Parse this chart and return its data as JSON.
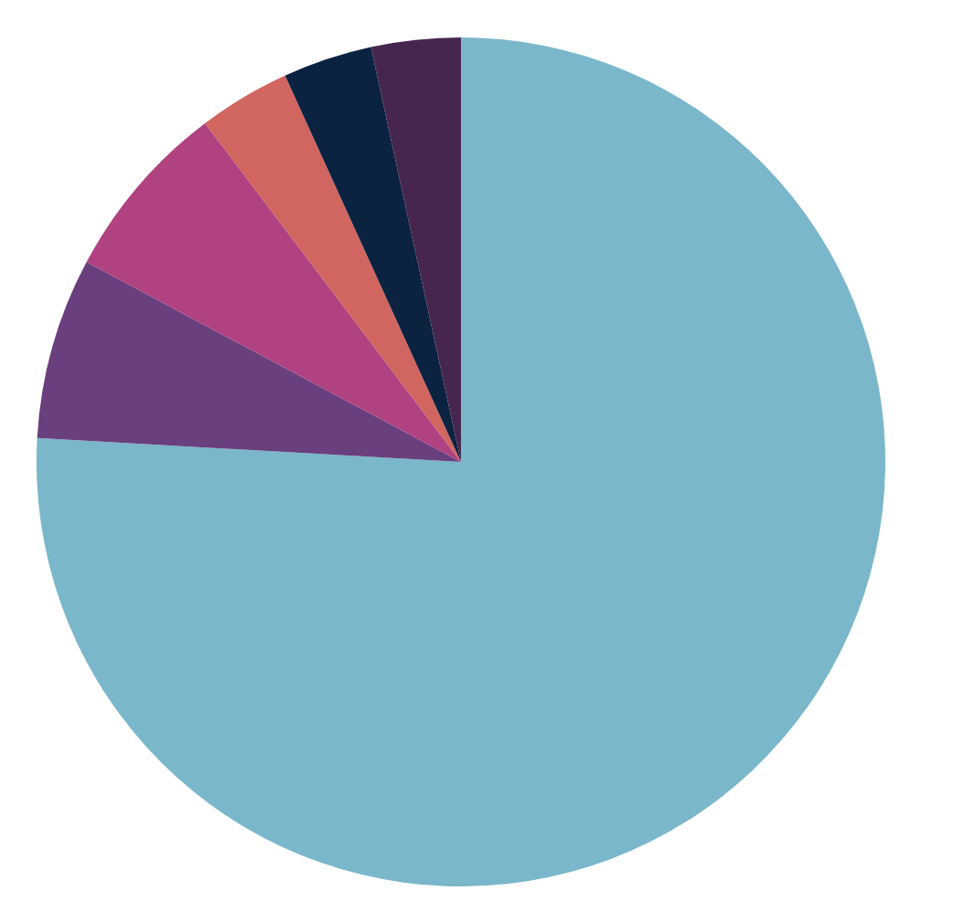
{
  "chart_data": {
    "type": "pie",
    "categories": [
      null,
      null,
      null,
      null,
      null,
      null
    ],
    "values": [
      75.9,
      6.9,
      6.9,
      3.5,
      3.4,
      3.4
    ],
    "colors": [
      "#7bb7ca",
      "#6a3f7e",
      "#b04281",
      "#d1655f",
      "#0c2241",
      "#46264f"
    ]
  }
}
